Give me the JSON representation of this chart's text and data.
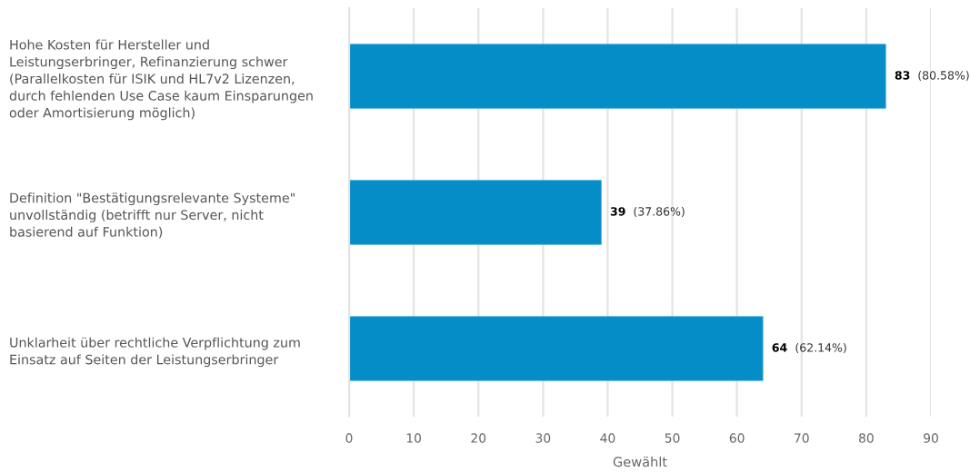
{
  "chart_data": {
    "type": "bar",
    "orientation": "horizontal",
    "categories": [
      "Hohe Kosten für Hersteller und\nLeistungserbringer, Refinanzierung schwer\n(Parallelkosten für ISIK und HL7v2 Lizenzen,\ndurch fehlenden Use Case kaum Einsparungen\noder Amortisierung möglich)",
      "Definition \"Bestätigungsrelevante Systeme\"\nunvollständig (betrifft nur Server, nicht\nbasierend auf Funktion)",
      "Unklarheit über rechtliche Verpflichtung zum\nEinsatz auf Seiten der Leistungserbringer"
    ],
    "values": [
      83,
      39,
      64
    ],
    "color": "#058dc7",
    "value_labels": [
      "83 (80.58%)",
      "39 (37.86%)",
      "64 (62.14%)"
    ],
    "xlabel": "Gewählt",
    "xlim": [
      0,
      90
    ],
    "xticks": [
      0,
      10,
      20,
      30,
      40,
      50,
      60,
      70,
      80,
      90
    ],
    "grid": "x"
  }
}
